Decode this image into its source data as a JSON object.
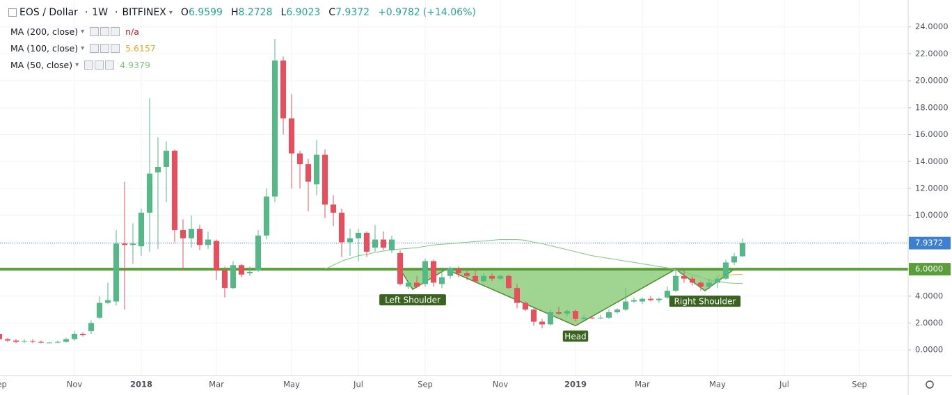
{
  "chart_data": {
    "type": "candlestick",
    "symbol": "EOS / Dollar",
    "interval": "1W",
    "exchange": "BITFINEX",
    "ohlc_prefixes": [
      "O",
      "H",
      "L",
      "C"
    ],
    "change": "+0.9782",
    "change_pct": "(+14.06%)",
    "up_color": "#53b987",
    "down_color": "#eb4d5c",
    "categories": [
      "Sep",
      null,
      null,
      null,
      null,
      null,
      null,
      null,
      null,
      "Nov",
      null,
      null,
      null,
      null,
      null,
      null,
      null,
      "2018",
      null,
      null,
      null,
      null,
      null,
      null,
      null,
      null,
      "Mar",
      null,
      null,
      null,
      null,
      null,
      null,
      null,
      null,
      "May",
      null,
      null,
      null,
      null,
      null,
      null,
      null,
      "Jul",
      null,
      null,
      null,
      null,
      null,
      null,
      null,
      "Sep",
      null,
      null,
      null,
      null,
      null,
      null,
      null,
      null,
      "Nov",
      null,
      null,
      null,
      null,
      null,
      null,
      null,
      null,
      "2019",
      null,
      null,
      null,
      null,
      null,
      null,
      null,
      "Mar",
      null,
      null,
      null,
      null,
      null,
      null,
      null,
      null,
      "May",
      null,
      null,
      null,
      null,
      null,
      null,
      null,
      "Jul",
      null,
      null,
      null,
      null,
      null,
      null,
      null,
      null,
      "Sep"
    ],
    "ohlc": [
      [
        1.2,
        1.3,
        0.7,
        0.8
      ],
      [
        0.8,
        0.9,
        0.6,
        0.7
      ],
      [
        0.7,
        0.8,
        0.5,
        0.6
      ],
      [
        0.6,
        0.8,
        0.5,
        0.65
      ],
      [
        0.65,
        0.8,
        0.5,
        0.6
      ],
      [
        0.6,
        0.7,
        0.5,
        0.55
      ],
      [
        0.55,
        0.6,
        0.5,
        0.55
      ],
      [
        0.55,
        0.7,
        0.5,
        0.6
      ],
      [
        0.6,
        0.9,
        0.55,
        0.8
      ],
      [
        0.8,
        1.4,
        0.7,
        1.2
      ],
      [
        1.2,
        1.3,
        1.0,
        1.1
      ],
      [
        1.4,
        2.2,
        1.2,
        2.0
      ],
      [
        2.4,
        4.0,
        2.3,
        3.5
      ],
      [
        3.5,
        5.0,
        3.4,
        3.7
      ],
      [
        3.6,
        8.9,
        3.3,
        7.9
      ],
      [
        7.9,
        12.5,
        3.0,
        7.8
      ],
      [
        7.8,
        9.4,
        6.4,
        7.9
      ],
      [
        7.7,
        10.5,
        7.0,
        10.2
      ],
      [
        10.2,
        18.7,
        7.3,
        13.1
      ],
      [
        13.2,
        15.8,
        7.5,
        13.6
      ],
      [
        13.6,
        15.5,
        11.0,
        14.8
      ],
      [
        14.8,
        14.9,
        8.0,
        8.9
      ],
      [
        8.9,
        9.7,
        5.9,
        8.3
      ],
      [
        8.3,
        10.0,
        7.6,
        9.0
      ],
      [
        9.0,
        9.3,
        7.4,
        7.8
      ],
      [
        7.8,
        8.8,
        7.5,
        8.2
      ],
      [
        8.1,
        8.2,
        5.2,
        5.9
      ],
      [
        5.9,
        6.2,
        3.9,
        4.6
      ],
      [
        4.6,
        6.6,
        4.5,
        6.3
      ],
      [
        6.3,
        6.4,
        5.4,
        5.6
      ],
      [
        5.7,
        6.2,
        5.5,
        5.8
      ],
      [
        5.9,
        8.9,
        5.8,
        8.5
      ],
      [
        8.5,
        12.0,
        8.2,
        11.4
      ],
      [
        11.4,
        23.1,
        11.0,
        21.5
      ],
      [
        21.5,
        21.8,
        16.0,
        17.2
      ],
      [
        17.2,
        19.0,
        12.0,
        14.6
      ],
      [
        14.6,
        14.8,
        12.0,
        13.8
      ],
      [
        13.8,
        14.2,
        10.3,
        12.5
      ],
      [
        12.3,
        15.6,
        11.5,
        14.5
      ],
      [
        14.5,
        14.9,
        9.8,
        10.8
      ],
      [
        10.8,
        11.5,
        9.2,
        10.2
      ],
      [
        10.2,
        10.5,
        6.9,
        8.0
      ],
      [
        8.0,
        9.0,
        7.0,
        8.3
      ],
      [
        8.3,
        9.0,
        6.6,
        8.7
      ],
      [
        8.7,
        8.8,
        6.9,
        7.3
      ],
      [
        7.6,
        9.3,
        7.3,
        8.2
      ],
      [
        8.2,
        8.8,
        7.4,
        7.6
      ],
      [
        7.4,
        8.5,
        7.2,
        8.2
      ],
      [
        7.2,
        7.4,
        4.8,
        4.9
      ],
      [
        4.7,
        5.1,
        4.5,
        5.0
      ],
      [
        5.0,
        5.5,
        4.6,
        4.7
      ],
      [
        4.9,
        6.8,
        4.7,
        6.6
      ],
      [
        6.6,
        6.7,
        4.7,
        5.0
      ],
      [
        4.9,
        5.9,
        4.6,
        5.4
      ],
      [
        5.5,
        6.2,
        5.3,
        6.1
      ],
      [
        6.0,
        6.2,
        5.4,
        5.7
      ],
      [
        5.7,
        5.9,
        5.2,
        5.5
      ],
      [
        5.5,
        5.9,
        5.0,
        5.1
      ],
      [
        5.1,
        5.7,
        5.0,
        5.5
      ],
      [
        5.5,
        5.7,
        5.1,
        5.3
      ],
      [
        5.3,
        5.6,
        5.2,
        5.5
      ],
      [
        5.5,
        5.6,
        4.5,
        4.6
      ],
      [
        4.6,
        4.9,
        3.1,
        3.5
      ],
      [
        3.5,
        3.6,
        2.9,
        3.0
      ],
      [
        3.0,
        3.1,
        1.8,
        2.1
      ],
      [
        2.1,
        2.3,
        1.6,
        1.9
      ],
      [
        1.9,
        3.0,
        1.8,
        2.8
      ],
      [
        2.8,
        3.2,
        2.6,
        2.7
      ],
      [
        2.7,
        3.0,
        2.5,
        2.9
      ],
      [
        2.9,
        3.0,
        2.1,
        2.3
      ],
      [
        2.3,
        2.6,
        2.2,
        2.4
      ],
      [
        2.4,
        2.5,
        2.3,
        2.35
      ],
      [
        2.35,
        2.6,
        2.3,
        2.4
      ],
      [
        2.4,
        3.0,
        2.3,
        2.8
      ],
      [
        2.8,
        3.1,
        2.7,
        3.0
      ],
      [
        3.0,
        4.6,
        2.9,
        3.6
      ],
      [
        3.6,
        3.9,
        3.5,
        3.7
      ],
      [
        3.6,
        3.9,
        3.4,
        3.8
      ],
      [
        3.8,
        4.0,
        3.6,
        3.7
      ],
      [
        3.7,
        3.9,
        3.5,
        3.8
      ],
      [
        3.9,
        4.7,
        3.8,
        4.4
      ],
      [
        4.4,
        6.0,
        4.3,
        5.5
      ],
      [
        5.5,
        6.0,
        5.0,
        5.3
      ],
      [
        5.3,
        5.5,
        4.8,
        5.0
      ],
      [
        5.0,
        5.1,
        4.4,
        4.7
      ],
      [
        4.7,
        5.3,
        4.5,
        5.0
      ],
      [
        5.0,
        5.5,
        4.6,
        5.3
      ],
      [
        5.3,
        6.7,
        5.2,
        6.5
      ],
      [
        6.5,
        7.2,
        6.3,
        6.96
      ],
      [
        6.9599,
        8.2728,
        6.9023,
        7.9372
      ],
      null,
      null,
      null,
      null,
      null,
      null,
      null,
      null,
      null,
      null,
      null,
      null,
      null,
      null
    ],
    "series": [
      {
        "name": "MA (200, close)",
        "color": "#b71c1c",
        "status": "n/a"
      },
      {
        "name": "MA (100, close)",
        "color": "#f5a623",
        "values": [
          null,
          null,
          null,
          null,
          null,
          null,
          null,
          null,
          null,
          null,
          null,
          null,
          null,
          null,
          null,
          null,
          null,
          null,
          null,
          null,
          null,
          null,
          null,
          null,
          null,
          null,
          null,
          null,
          null,
          null,
          null,
          null,
          null,
          null,
          null,
          null,
          null,
          null,
          null,
          null,
          null,
          null,
          null,
          null,
          null,
          null,
          null,
          null,
          null,
          null,
          null,
          null,
          null,
          null,
          null,
          null,
          null,
          null,
          null,
          null,
          null,
          null,
          null,
          null,
          null,
          null,
          null,
          null,
          null,
          null,
          null,
          null,
          null,
          null,
          null,
          null,
          null,
          null,
          null,
          null,
          null,
          null,
          null,
          null,
          null,
          null,
          5.5,
          5.55,
          5.6,
          5.6157,
          null,
          null,
          null,
          null,
          null,
          null,
          null,
          null,
          null,
          null,
          null,
          null,
          null,
          null
        ]
      },
      {
        "name": "MA (50, close)",
        "color": "#7ec87e",
        "values": [
          null,
          null,
          null,
          null,
          null,
          null,
          null,
          null,
          null,
          null,
          null,
          null,
          null,
          null,
          null,
          null,
          null,
          null,
          null,
          null,
          null,
          null,
          null,
          null,
          null,
          null,
          null,
          null,
          null,
          null,
          null,
          null,
          null,
          null,
          null,
          null,
          null,
          null,
          null,
          6.0,
          6.3,
          6.6,
          6.8,
          7.0,
          7.1,
          7.25,
          7.35,
          7.45,
          7.5,
          7.55,
          7.6,
          7.7,
          7.8,
          7.85,
          7.9,
          7.95,
          8.0,
          8.05,
          8.1,
          8.15,
          8.2,
          8.2,
          8.2,
          8.15,
          8.0,
          7.9,
          7.75,
          7.6,
          7.45,
          7.3,
          7.15,
          7.0,
          6.9,
          6.8,
          6.7,
          6.6,
          6.5,
          6.4,
          6.3,
          6.2,
          6.1,
          5.95,
          5.8,
          5.6,
          5.4,
          5.2,
          5.1,
          5.0,
          4.95,
          4.9379,
          null,
          null,
          null,
          null,
          null,
          null,
          null,
          null,
          null,
          null,
          null,
          null,
          null,
          null
        ]
      }
    ],
    "ylim": [
      -1.9,
      26.0
    ],
    "yticks": [
      {
        "value": 0,
        "label": "0.0000"
      },
      {
        "value": 2,
        "label": "2.0000"
      },
      {
        "value": 4,
        "label": "4.0000"
      },
      {
        "value": 6,
        "label": "6.0000"
      },
      {
        "value": 8,
        "label": "8.0000"
      },
      {
        "value": 10,
        "label": "10.0000"
      },
      {
        "value": 12,
        "label": "12.0000"
      },
      {
        "value": 14,
        "label": "14.0000"
      },
      {
        "value": 16,
        "label": "16.0000"
      },
      {
        "value": 18,
        "label": "18.0000"
      },
      {
        "value": 20,
        "label": "20.0000"
      },
      {
        "value": 22,
        "label": "22.0000"
      },
      {
        "value": 24,
        "label": "24.0000"
      }
    ],
    "grid": true,
    "last_price_color": "#3d7fd1",
    "level": {
      "value": 6,
      "label": "6.0000",
      "color": "#5a9e3a"
    },
    "pattern": {
      "fill": "#8fce7e",
      "stroke": "#4f8a2e",
      "label_color": "#3a6320",
      "points": [
        {
          "x": 48,
          "y": 6
        },
        {
          "x": 49.5,
          "y": 4.5,
          "label": "Left Shoulder"
        },
        {
          "x": 53.5,
          "y": 6
        },
        {
          "x": 69,
          "y": 1.8,
          "label": "Head"
        },
        {
          "x": 81,
          "y": 6
        },
        {
          "x": 84.5,
          "y": 4.4,
          "label": "Right Shoulder"
        },
        {
          "x": 88,
          "y": 6
        }
      ]
    }
  }
}
